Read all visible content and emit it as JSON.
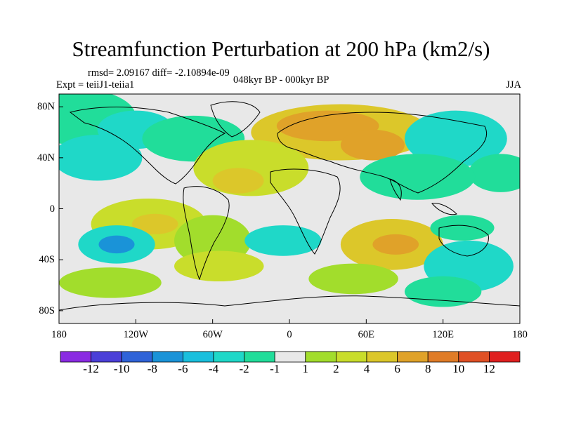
{
  "title": "Streamfunction Perturbation at 200 hPa (km2/s)",
  "stats_line": "rmsd= 2.09167 diff= -2.10894e-09",
  "expt_line": "Expt = teiiJ1-teiia1",
  "period_line": "048kyr BP - 000kyr BP",
  "season": "JJA",
  "lat_ticks": [
    {
      "label": "80N",
      "lat": 80
    },
    {
      "label": "40N",
      "lat": 40
    },
    {
      "label": "0",
      "lat": 0
    },
    {
      "label": "40S",
      "lat": -40
    },
    {
      "label": "80S",
      "lat": -80
    }
  ],
  "lon_ticks": [
    {
      "label": "180",
      "lon": -180
    },
    {
      "label": "120W",
      "lon": -120
    },
    {
      "label": "60W",
      "lon": -60
    },
    {
      "label": "0",
      "lon": 0
    },
    {
      "label": "60E",
      "lon": 60
    },
    {
      "label": "120E",
      "lon": 120
    },
    {
      "label": "180",
      "lon": 180
    }
  ],
  "colorbar": {
    "colors": [
      "#8a2be2",
      "#4b3fd8",
      "#2f63d8",
      "#1a93d8",
      "#19bfdd",
      "#1fd8c8",
      "#21dd9a",
      "#e8e8e8",
      "#a2dd2c",
      "#c9dd2b",
      "#dcc72a",
      "#e0a229",
      "#e07c27",
      "#e05025",
      "#e02020"
    ],
    "labels": [
      "-12",
      "-10",
      "-8",
      "-6",
      "-4",
      "-2",
      "-1",
      "1",
      "2",
      "4",
      "6",
      "8",
      "10",
      "12"
    ]
  },
  "field_blobs": [
    {
      "lon": -165,
      "lat": 72,
      "rlon": 45,
      "rlat": 22,
      "level": "#21dd9a"
    },
    {
      "lon": -120,
      "lat": 62,
      "rlon": 30,
      "rlat": 15,
      "level": "#1fd8c8"
    },
    {
      "lon": -75,
      "lat": 55,
      "rlon": 40,
      "rlat": 18,
      "level": "#21dd9a"
    },
    {
      "lon": -150,
      "lat": 40,
      "rlon": 35,
      "rlat": 18,
      "level": "#1fd8c8"
    },
    {
      "lon": 40,
      "lat": 60,
      "rlon": 70,
      "rlat": 22,
      "level": "#dcc72a"
    },
    {
      "lon": 30,
      "lat": 65,
      "rlon": 40,
      "rlat": 12,
      "level": "#e0a229"
    },
    {
      "lon": 65,
      "lat": 50,
      "rlon": 25,
      "rlat": 12,
      "level": "#e0a229"
    },
    {
      "lon": -30,
      "lat": 32,
      "rlon": 45,
      "rlat": 22,
      "level": "#c9dd2b"
    },
    {
      "lon": -40,
      "lat": 22,
      "rlon": 20,
      "rlat": 10,
      "level": "#dcc72a"
    },
    {
      "lon": 130,
      "lat": 55,
      "rlon": 40,
      "rlat": 22,
      "level": "#1fd8c8"
    },
    {
      "lon": 165,
      "lat": 28,
      "rlon": 25,
      "rlat": 15,
      "level": "#21dd9a"
    },
    {
      "lon": 100,
      "lat": 25,
      "rlon": 45,
      "rlat": 18,
      "level": "#21dd9a"
    },
    {
      "lon": -110,
      "lat": -12,
      "rlon": 45,
      "rlat": 20,
      "level": "#c9dd2b"
    },
    {
      "lon": -105,
      "lat": -12,
      "rlon": 18,
      "rlat": 8,
      "level": "#dcc72a"
    },
    {
      "lon": -135,
      "lat": -28,
      "rlon": 30,
      "rlat": 15,
      "level": "#1fd8c8"
    },
    {
      "lon": -135,
      "lat": -28,
      "rlon": 14,
      "rlat": 7,
      "level": "#1a93d8"
    },
    {
      "lon": -60,
      "lat": -25,
      "rlon": 30,
      "rlat": 20,
      "level": "#a2dd2c"
    },
    {
      "lon": -55,
      "lat": -45,
      "rlon": 35,
      "rlat": 12,
      "level": "#c9dd2b"
    },
    {
      "lon": -140,
      "lat": -58,
      "rlon": 40,
      "rlat": 12,
      "level": "#a2dd2c"
    },
    {
      "lon": -5,
      "lat": -25,
      "rlon": 30,
      "rlat": 12,
      "level": "#1fd8c8"
    },
    {
      "lon": 80,
      "lat": -28,
      "rlon": 40,
      "rlat": 20,
      "level": "#dcc72a"
    },
    {
      "lon": 83,
      "lat": -28,
      "rlon": 18,
      "rlat": 8,
      "level": "#e0a229"
    },
    {
      "lon": 50,
      "lat": -55,
      "rlon": 35,
      "rlat": 12,
      "level": "#a2dd2c"
    },
    {
      "lon": 140,
      "lat": -45,
      "rlon": 35,
      "rlat": 20,
      "level": "#1fd8c8"
    },
    {
      "lon": 135,
      "lat": -15,
      "rlon": 25,
      "rlat": 10,
      "level": "#21dd9a"
    },
    {
      "lon": 120,
      "lat": -65,
      "rlon": 30,
      "rlat": 12,
      "level": "#21dd9a"
    }
  ]
}
